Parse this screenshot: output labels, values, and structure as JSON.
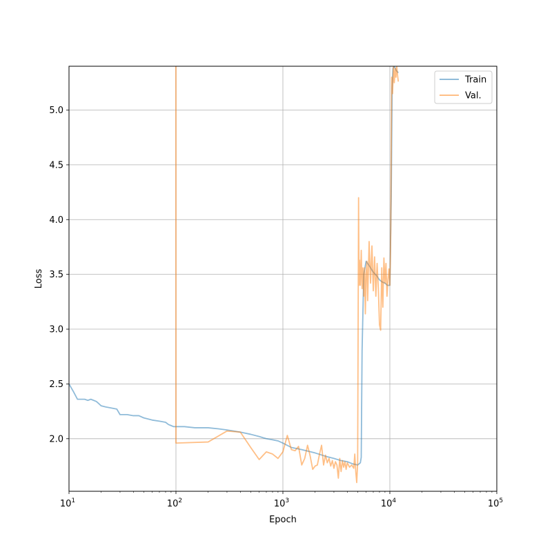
{
  "chart_data": {
    "type": "line",
    "title": "",
    "xlabel": "Epoch",
    "ylabel": "Loss",
    "xscale": "log",
    "xlim": [
      10,
      100000
    ],
    "ylim": [
      1.52,
      5.4
    ],
    "grid": true,
    "legend_position": "top-right",
    "x_ticks": [
      {
        "value": 10,
        "base": "10",
        "exp": "1"
      },
      {
        "value": 100,
        "base": "10",
        "exp": "2"
      },
      {
        "value": 1000,
        "base": "10",
        "exp": "3"
      },
      {
        "value": 10000,
        "base": "10",
        "exp": "4"
      },
      {
        "value": 100000,
        "base": "10",
        "exp": "5"
      }
    ],
    "y_ticks": [
      {
        "value": 2.0,
        "label": "2.0"
      },
      {
        "value": 2.5,
        "label": "2.5"
      },
      {
        "value": 3.0,
        "label": "3.0"
      },
      {
        "value": 3.5,
        "label": "3.5"
      },
      {
        "value": 4.0,
        "label": "4.0"
      },
      {
        "value": 4.5,
        "label": "4.5"
      },
      {
        "value": 5.0,
        "label": "5.0"
      }
    ],
    "series": [
      {
        "name": "Train",
        "color": "#1f77b4",
        "x": [
          10,
          11,
          12,
          13,
          14,
          15,
          16,
          17,
          18,
          19,
          20,
          22,
          25,
          28,
          30,
          35,
          40,
          45,
          50,
          60,
          70,
          80,
          85,
          90,
          95,
          100,
          120,
          150,
          200,
          250,
          300,
          400,
          500,
          600,
          700,
          800,
          900,
          1000,
          1200,
          1500,
          2000,
          2500,
          3000,
          3500,
          4000,
          4500,
          5000,
          5300,
          5400,
          5500,
          5700,
          6000,
          6500,
          7000,
          7500,
          8000,
          8500,
          9000,
          9500,
          10000,
          10300,
          10500,
          10700,
          11000,
          11500,
          12000
        ],
        "y": [
          2.5,
          2.43,
          2.36,
          2.36,
          2.36,
          2.35,
          2.36,
          2.35,
          2.34,
          2.32,
          2.3,
          2.29,
          2.28,
          2.27,
          2.22,
          2.22,
          2.21,
          2.21,
          2.19,
          2.17,
          2.16,
          2.15,
          2.13,
          2.12,
          2.11,
          2.11,
          2.11,
          2.1,
          2.1,
          2.09,
          2.08,
          2.06,
          2.04,
          2.02,
          2.0,
          1.99,
          1.98,
          1.96,
          1.92,
          1.9,
          1.87,
          1.84,
          1.82,
          1.8,
          1.79,
          1.77,
          1.76,
          1.78,
          1.83,
          2.8,
          3.5,
          3.62,
          3.57,
          3.52,
          3.49,
          3.45,
          3.43,
          3.42,
          3.4,
          3.4,
          4.2,
          5.2,
          5.38,
          5.4,
          5.36,
          5.34
        ]
      },
      {
        "name": "Val.",
        "color": "#ff7f0e",
        "x": [
          99.9,
          100,
          200,
          300,
          400,
          500,
          600,
          700,
          800,
          900,
          1000,
          1100,
          1200,
          1300,
          1400,
          1500,
          1600,
          1700,
          1800,
          1900,
          2000,
          2100,
          2200,
          2300,
          2400,
          2500,
          2600,
          2700,
          2800,
          2900,
          3000,
          3100,
          3200,
          3300,
          3400,
          3500,
          3600,
          3700,
          3800,
          3900,
          4000,
          4200,
          4400,
          4600,
          4700,
          4800,
          4900,
          5000,
          5100,
          5150,
          5200,
          5300,
          5400,
          5500,
          5600,
          5700,
          5800,
          5900,
          6000,
          6100,
          6200,
          6400,
          6600,
          6800,
          7000,
          7200,
          7400,
          7600,
          7800,
          8000,
          8200,
          8400,
          8600,
          8800,
          9000,
          9200,
          9400,
          9600,
          9800,
          10000,
          10100,
          10200,
          10400,
          10600,
          10800,
          11000,
          11200,
          11400,
          11600,
          11800,
          12000
        ],
        "y": [
          5.4,
          1.96,
          1.97,
          2.07,
          2.06,
          1.92,
          1.81,
          1.88,
          1.86,
          1.82,
          1.88,
          2.03,
          1.9,
          1.89,
          1.93,
          1.76,
          1.82,
          1.94,
          1.84,
          1.72,
          1.75,
          1.76,
          1.86,
          1.94,
          1.76,
          1.85,
          1.78,
          1.82,
          1.75,
          1.8,
          1.73,
          1.79,
          1.76,
          1.64,
          1.82,
          1.7,
          1.8,
          1.74,
          1.79,
          1.72,
          1.78,
          1.74,
          1.76,
          1.73,
          1.86,
          1.7,
          1.6,
          1.78,
          4.2,
          3.4,
          3.63,
          3.4,
          3.72,
          3.37,
          3.56,
          3.3,
          3.56,
          3.14,
          3.5,
          3.62,
          3.26,
          3.8,
          3.42,
          3.76,
          3.35,
          3.66,
          3.3,
          3.6,
          3.38,
          3.04,
          2.99,
          3.56,
          3.2,
          3.65,
          3.42,
          3.6,
          3.3,
          3.45,
          3.55,
          3.4,
          3.6,
          3.9,
          5.3,
          5.15,
          5.4,
          5.25,
          5.38,
          5.3,
          5.4,
          5.32,
          5.26
        ]
      }
    ]
  }
}
